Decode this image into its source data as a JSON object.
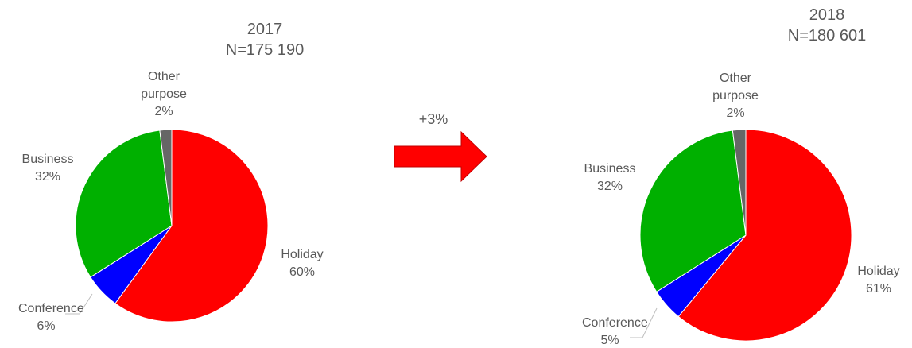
{
  "chart_data": [
    {
      "type": "pie",
      "title": "2017",
      "subtitle": "N=175 190",
      "categories": [
        "Holiday",
        "Conference",
        "Business",
        "Other purpose"
      ],
      "values": [
        60,
        6,
        32,
        2
      ],
      "value_labels": [
        "60%",
        "6%",
        "32%",
        "2%"
      ],
      "colors": [
        "#ff0000",
        "#0000ff",
        "#00b000",
        "#666666"
      ]
    },
    {
      "type": "pie",
      "title": "2018",
      "subtitle": "N=180 601",
      "categories": [
        "Holiday",
        "Conference",
        "Business",
        "Other purpose"
      ],
      "values": [
        61,
        5,
        32,
        2
      ],
      "value_labels": [
        "61%",
        "5%",
        "32%",
        "2%"
      ],
      "colors": [
        "#ff0000",
        "#0000ff",
        "#00b000",
        "#666666"
      ]
    }
  ],
  "annotation": "+3%"
}
